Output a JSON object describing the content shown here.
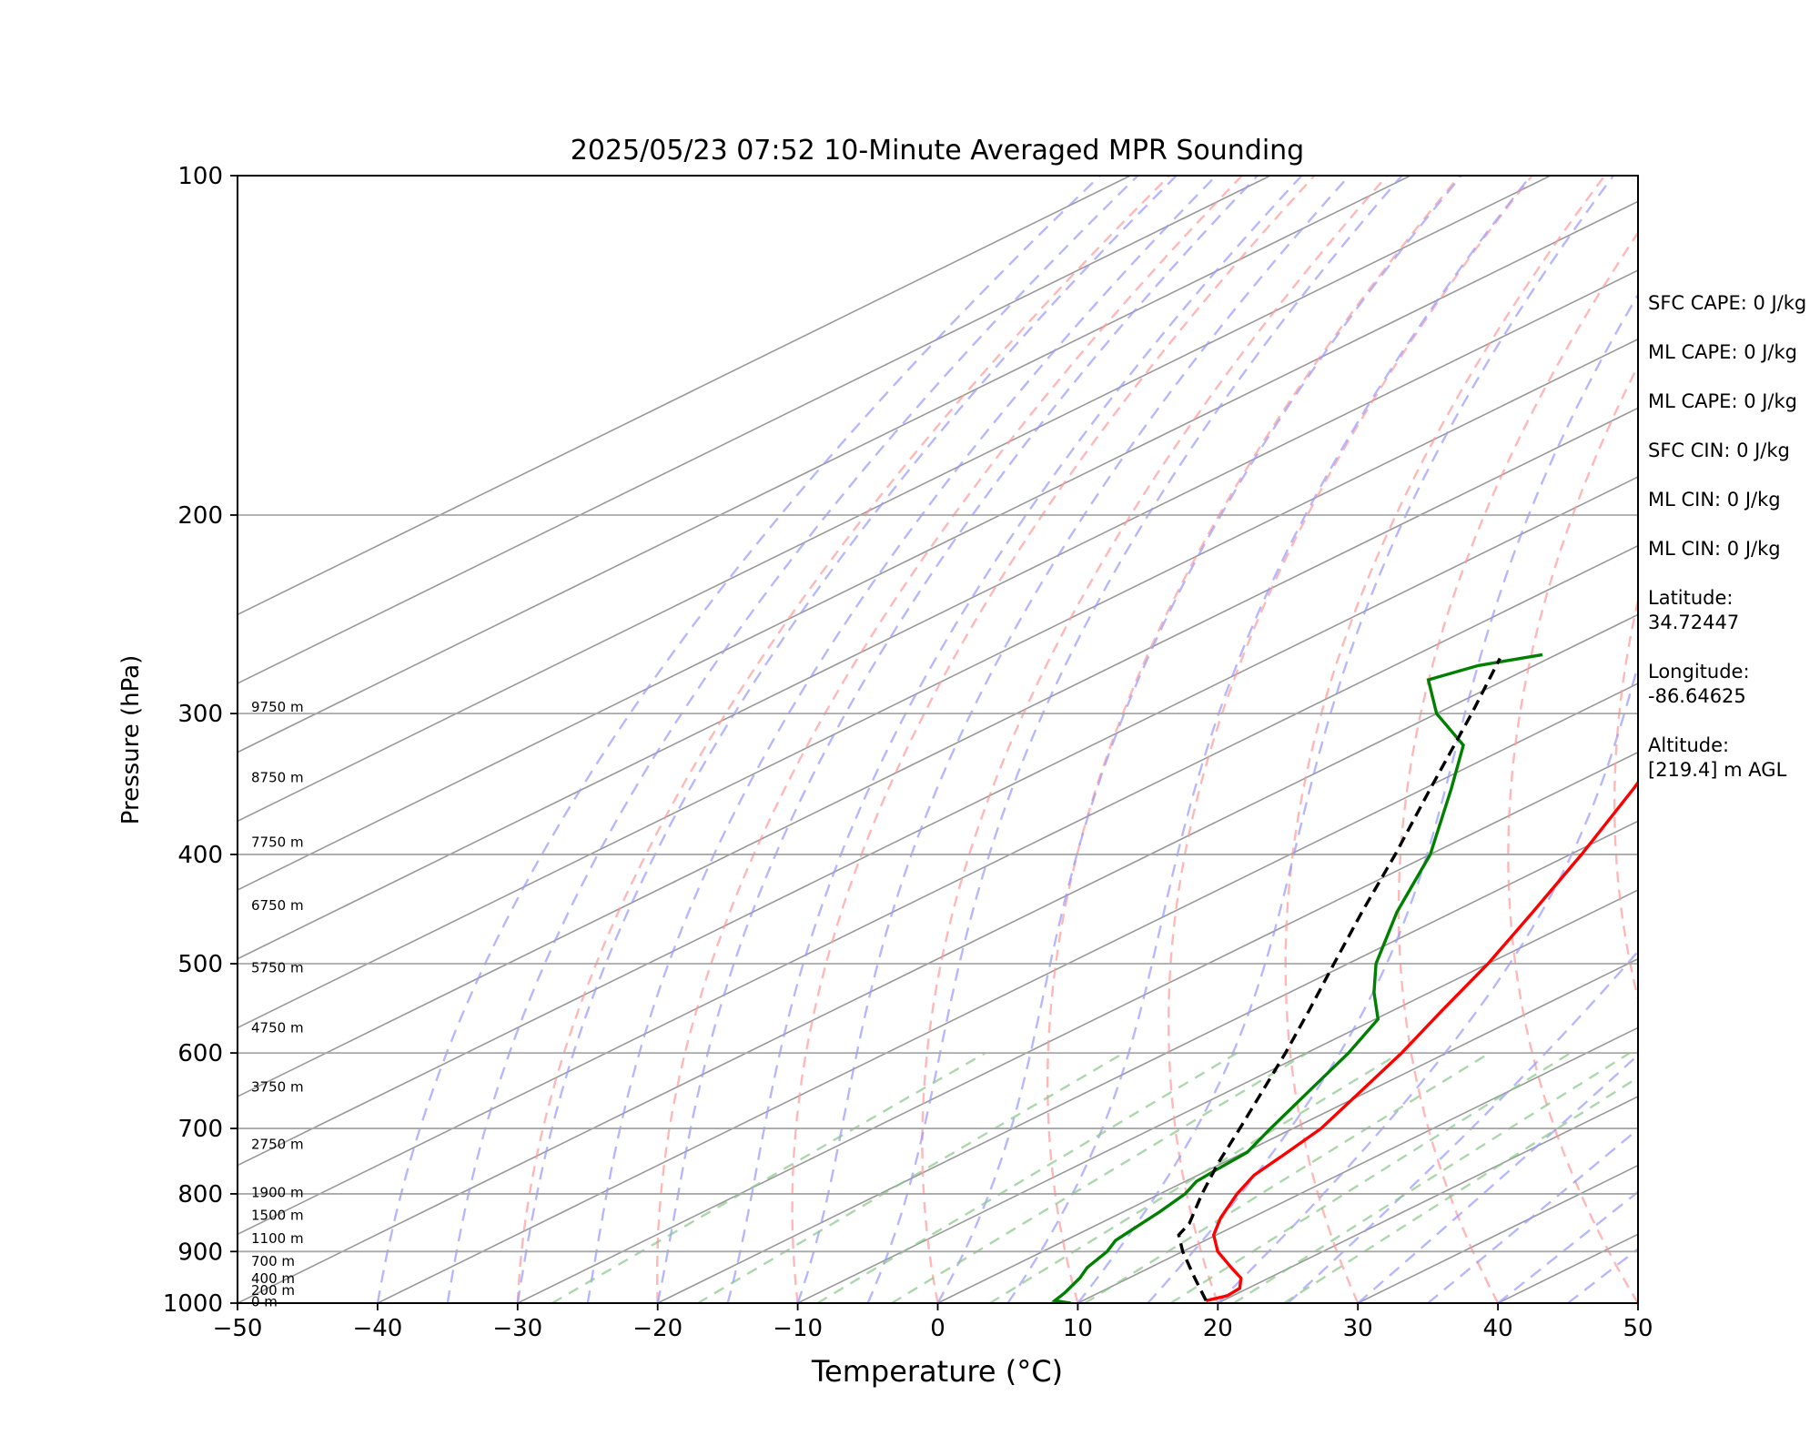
{
  "chart_data": {
    "type": "skew-t",
    "title": "2025/05/23 07:52 10-Minute Averaged MPR Sounding",
    "xlabel": "Temperature (°C)",
    "ylabel": "Pressure (hPa)",
    "xlim": [
      -50,
      50
    ],
    "ylim": [
      1000,
      100
    ],
    "y_scale": "log",
    "x_ticks": [
      -50,
      -40,
      -30,
      -20,
      -10,
      0,
      10,
      20,
      30,
      40,
      50
    ],
    "x_tick_labels": [
      "−50",
      "−40",
      "−30",
      "−20",
      "−10",
      "0",
      "10",
      "20",
      "30",
      "40",
      "50"
    ],
    "y_ticks": [
      1000,
      900,
      800,
      700,
      600,
      500,
      400,
      300,
      200,
      100
    ],
    "y_tick_labels": [
      "1000",
      "900",
      "800",
      "700",
      "600",
      "500",
      "400",
      "300",
      "200",
      "100"
    ],
    "grid": true,
    "series": [
      {
        "color": "#ff0000",
        "style": "solid",
        "points": [
          {
            "p": 995,
            "t": 18.8
          },
          {
            "p": 985,
            "t": 19.6
          },
          {
            "p": 970,
            "t": 19.4
          },
          {
            "p": 950,
            "t": 18.0
          },
          {
            "p": 930,
            "t": 15.8
          },
          {
            "p": 900,
            "t": 12.5
          },
          {
            "p": 870,
            "t": 9.8
          },
          {
            "p": 840,
            "t": 7.8
          },
          {
            "p": 800,
            "t": 5.5
          },
          {
            "p": 770,
            "t": 4.0
          },
          {
            "p": 740,
            "t": 3.2
          },
          {
            "p": 700,
            "t": 2.0
          },
          {
            "p": 650,
            "t": -0.5
          },
          {
            "p": 600,
            "t": -3.2
          },
          {
            "p": 550,
            "t": -6.5
          },
          {
            "p": 500,
            "t": -10.0
          },
          {
            "p": 450,
            "t": -14.3
          },
          {
            "p": 400,
            "t": -19.2
          },
          {
            "p": 350,
            "t": -25.0
          },
          {
            "p": 300,
            "t": -32.0
          },
          {
            "p": 268,
            "t": -37.5
          }
        ]
      },
      {
        "color": "#008000",
        "style": "solid",
        "points": [
          {
            "p": 1000,
            "t": 9.5
          },
          {
            "p": 995,
            "t": 8.0
          },
          {
            "p": 980,
            "t": 7.6
          },
          {
            "p": 950,
            "t": 6.5
          },
          {
            "p": 930,
            "t": 5.5
          },
          {
            "p": 900,
            "t": 4.6
          },
          {
            "p": 880,
            "t": 3.6
          },
          {
            "p": 860,
            "t": 3.2
          },
          {
            "p": 830,
            "t": 2.6
          },
          {
            "p": 800,
            "t": 1.8
          },
          {
            "p": 780,
            "t": 0.8
          },
          {
            "p": 760,
            "t": 0.5
          },
          {
            "p": 735,
            "t": 0.2
          },
          {
            "p": 700,
            "t": -1.6
          },
          {
            "p": 650,
            "t": -4.2
          },
          {
            "p": 600,
            "t": -7.0
          },
          {
            "p": 560,
            "t": -9.8
          },
          {
            "p": 530,
            "t": -14.0
          },
          {
            "p": 500,
            "t": -18.0
          },
          {
            "p": 450,
            "t": -24.0
          },
          {
            "p": 400,
            "t": -30.0
          },
          {
            "p": 350,
            "t": -38.0
          },
          {
            "p": 320,
            "t": -43.5
          },
          {
            "p": 300,
            "t": -50.0
          },
          {
            "p": 280,
            "t": -55.5
          },
          {
            "p": 272,
            "t": -54.0
          },
          {
            "p": 266,
            "t": -51.0
          }
        ]
      },
      {
        "color": "#000000",
        "style": "dashed",
        "points": [
          {
            "p": 995,
            "t": 18.8
          },
          {
            "p": 950,
            "t": 14.7
          },
          {
            "p": 900,
            "t": 10.0
          },
          {
            "p": 870,
            "t": 7.3
          },
          {
            "p": 850,
            "t": 6.4
          },
          {
            "p": 800,
            "t": 3.0
          },
          {
            "p": 750,
            "t": -0.4
          },
          {
            "p": 700,
            "t": -3.8
          },
          {
            "p": 650,
            "t": -7.5
          },
          {
            "p": 600,
            "t": -11.5
          },
          {
            "p": 550,
            "t": -16.0
          },
          {
            "p": 500,
            "t": -21.0
          },
          {
            "p": 450,
            "t": -26.5
          },
          {
            "p": 400,
            "t": -32.5
          },
          {
            "p": 350,
            "t": -39.5
          },
          {
            "p": 300,
            "t": -47.5
          },
          {
            "p": 268,
            "t": -53.5
          }
        ]
      }
    ],
    "height_labels": [
      {
        "label": "0 m",
        "p": 997
      },
      {
        "label": "200 m",
        "p": 974
      },
      {
        "label": "400 m",
        "p": 951
      },
      {
        "label": "700 m",
        "p": 918
      },
      {
        "label": "1100 m",
        "p": 876
      },
      {
        "label": "1500 m",
        "p": 836
      },
      {
        "label": "1900 m",
        "p": 798
      },
      {
        "label": "2750 m",
        "p": 723
      },
      {
        "label": "3750 m",
        "p": 643
      },
      {
        "label": "4750 m",
        "p": 570
      },
      {
        "label": "5750 m",
        "p": 504
      },
      {
        "label": "6750 m",
        "p": 444
      },
      {
        "label": "7750 m",
        "p": 390
      },
      {
        "label": "8750 m",
        "p": 342
      },
      {
        "label": "9750 m",
        "p": 296
      }
    ],
    "annotations": [
      "SFC CAPE: 0 J/kg",
      "ML CAPE: 0 J/kg",
      "ML CAPE: 0 J/kg",
      "SFC CIN: 0 J/kg",
      "ML CIN: 0 J/kg",
      "ML CIN: 0 J/kg",
      "Latitude:\n34.72447",
      "Longitude:\n-86.64625",
      "Altitude:\n[219.4] m AGL"
    ],
    "reference_lines": {
      "dry_adiabats": {
        "color": "#ff9999",
        "style": "dashed"
      },
      "moist_adiabats": {
        "color": "#9999ff",
        "style": "dashed"
      },
      "mixing_ratio": {
        "color": "#88c888",
        "style": "dashed"
      },
      "isotherms": {
        "color": "#999999",
        "style": "solid"
      }
    }
  }
}
